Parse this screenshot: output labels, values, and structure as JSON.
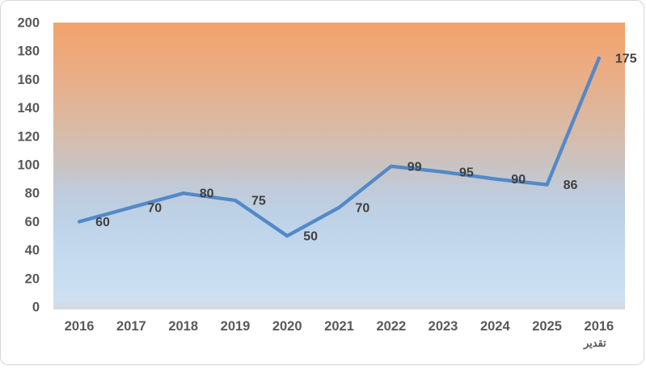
{
  "chart_data": {
    "type": "line",
    "title": "",
    "categories": [
      "2016",
      "2017",
      "2018",
      "2019",
      "2020",
      "2021",
      "2022",
      "2023",
      "2024",
      "2025",
      "2016 تقدير"
    ],
    "x_labels": [
      {
        "text": "2016",
        "sub": ""
      },
      {
        "text": "2017",
        "sub": ""
      },
      {
        "text": "2018",
        "sub": ""
      },
      {
        "text": "2019",
        "sub": ""
      },
      {
        "text": "2020",
        "sub": ""
      },
      {
        "text": "2021",
        "sub": ""
      },
      {
        "text": "2022",
        "sub": ""
      },
      {
        "text": "2023",
        "sub": ""
      },
      {
        "text": "2024",
        "sub": ""
      },
      {
        "text": "2025",
        "sub": ""
      },
      {
        "text": "2016",
        "sub": "تقدير"
      }
    ],
    "series": [
      {
        "name": "",
        "values": [
          60,
          70,
          80,
          75,
          50,
          70,
          99,
          95,
          90,
          86,
          175
        ]
      }
    ],
    "data_labels": [
      "60",
      "70",
      "80",
      "75",
      "50",
      "70",
      "99",
      "95",
      "90",
      "86",
      "175"
    ],
    "xlabel": "",
    "ylabel": "",
    "ylim": [
      0,
      200
    ],
    "ytick_step": 20,
    "grid": false,
    "legend": "none",
    "line_color": "#5389c8",
    "line_width": 4.4,
    "data_label_color": "#404040",
    "axis_label_color": "#595959",
    "plot_gradient": [
      {
        "offset": 0,
        "color": "#f2a36b"
      },
      {
        "offset": 18,
        "color": "#eaad85"
      },
      {
        "offset": 38,
        "color": "#d8bba8"
      },
      {
        "offset": 50,
        "color": "#c9c3c2"
      },
      {
        "offset": 58,
        "color": "#c0cbd9"
      },
      {
        "offset": 68,
        "color": "#bdd2e7"
      },
      {
        "offset": 85,
        "color": "#c7dcf0"
      },
      {
        "offset": 97,
        "color": "#cee0f2"
      },
      {
        "offset": 100,
        "color": "#d5d8dc"
      }
    ]
  }
}
